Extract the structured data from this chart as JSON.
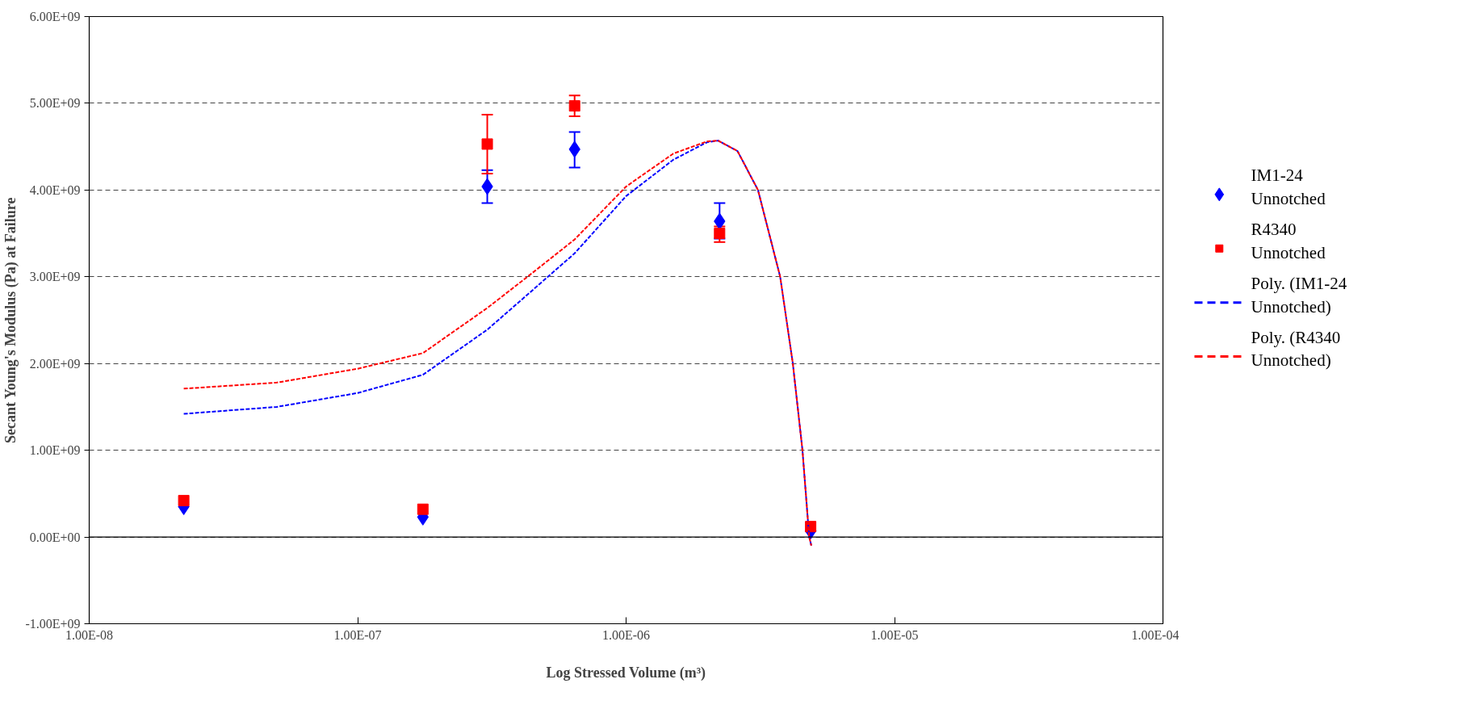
{
  "chart_data": {
    "type": "scatter",
    "xlabel": "Log Stressed Volume (m³)",
    "ylabel": "Secant Young's Modulus (Pa) at Failure",
    "log": "x",
    "xlim": [
      1e-08,
      0.0001
    ],
    "xticks": [
      {
        "value": 1e-08,
        "label": "1.00E-08"
      },
      {
        "value": 1e-07,
        "label": "1.00E-07"
      },
      {
        "value": 1e-06,
        "label": "1.00E-06"
      },
      {
        "value": 1e-05,
        "label": "1.00E-05"
      },
      {
        "value": 0.0001,
        "label": "1.00E-04"
      }
    ],
    "ylim": [
      -1000000000.0,
      6000000000.0
    ],
    "yticks": [
      {
        "value": -1000000000.0,
        "label": "-1.00E+09"
      },
      {
        "value": 0,
        "label": "0.00E+00"
      },
      {
        "value": 1000000000.0,
        "label": "1.00E+09"
      },
      {
        "value": 2000000000.0,
        "label": "2.00E+09"
      },
      {
        "value": 3000000000.0,
        "label": "3.00E+09"
      },
      {
        "value": 4000000000.0,
        "label": "4.00E+09"
      },
      {
        "value": 5000000000.0,
        "label": "5.00E+09"
      },
      {
        "value": 6000000000.0,
        "label": "6.00E+09"
      }
    ],
    "grid": "y",
    "legend": "right",
    "ref_lines": [
      {
        "axis": "y",
        "value": 0,
        "color": "#000000",
        "line_style": "solid"
      }
    ],
    "series": [
      {
        "name": "IM1-24 Unnotched",
        "type": "scatter",
        "marker": "diamond",
        "color": "#0000ff",
        "x": [
          2.25e-08,
          1.75e-07,
          3.04e-07,
          6.43e-07,
          2.23e-06,
          4.87e-06
        ],
        "values": [
          350000000.0,
          230000000.0,
          4040000000.0,
          4470000000.0,
          3640000000.0,
          70000000.0
        ],
        "errors": [
          null,
          null,
          [
            3850000000.0,
            4230000000.0
          ],
          [
            4260000000.0,
            4670000000.0
          ],
          [
            3440000000.0,
            3850000000.0
          ],
          null
        ]
      },
      {
        "name": "R4340 Unnotched",
        "type": "scatter",
        "marker": "square",
        "color": "#ff0000",
        "x": [
          2.25e-08,
          1.75e-07,
          3.04e-07,
          6.43e-07,
          2.23e-06,
          4.87e-06
        ],
        "values": [
          420000000.0,
          320000000.0,
          4530000000.0,
          4970000000.0,
          3500000000.0,
          120000000.0
        ],
        "errors": [
          null,
          null,
          [
            4190000000.0,
            4870000000.0
          ],
          [
            4850000000.0,
            5090000000.0
          ],
          [
            3400000000.0,
            3580000000.0
          ],
          null
        ]
      },
      {
        "name": "Poly. (IM1-24 Unnotched)",
        "type": "line",
        "line_style": "dashed",
        "marker": "none",
        "color": "#0000ff",
        "x": [
          2.25e-08,
          5e-08,
          1e-07,
          1.75e-07,
          3.04e-07,
          4.5e-07,
          6.43e-07,
          1e-06,
          1.5e-06,
          2e-06,
          2.2e-06,
          2.6e-06,
          3.1e-06,
          3.75e-06,
          4.18e-06,
          4.54e-06,
          4.81e-06,
          4.9e-06
        ],
        "values": [
          1420000000.0,
          1500000000.0,
          1660000000.0,
          1870000000.0,
          2390000000.0,
          2850000000.0,
          3270000000.0,
          3930000000.0,
          4350000000.0,
          4550000000.0,
          4570000000.0,
          4450000000.0,
          4000000000.0,
          3000000000.0,
          2000000000.0,
          1000000000.0,
          0,
          -100000000.0
        ]
      },
      {
        "name": "Poly. (R4340 Unnotched)",
        "type": "line",
        "line_style": "dashed",
        "marker": "none",
        "color": "#ff0000",
        "x": [
          2.25e-08,
          5e-08,
          1e-07,
          1.75e-07,
          3.04e-07,
          4.5e-07,
          6.43e-07,
          1e-06,
          1.5e-06,
          2e-06,
          2.2e-06,
          2.6e-06,
          3.1e-06,
          3.75e-06,
          4.18e-06,
          4.54e-06,
          4.81e-06,
          4.9e-06
        ],
        "values": [
          1710000000.0,
          1780000000.0,
          1940000000.0,
          2120000000.0,
          2640000000.0,
          3050000000.0,
          3430000000.0,
          4040000000.0,
          4420000000.0,
          4560000000.0,
          4570000000.0,
          4450000000.0,
          4000000000.0,
          3000000000.0,
          2000000000.0,
          1000000000.0,
          0,
          -100000000.0
        ]
      }
    ]
  }
}
